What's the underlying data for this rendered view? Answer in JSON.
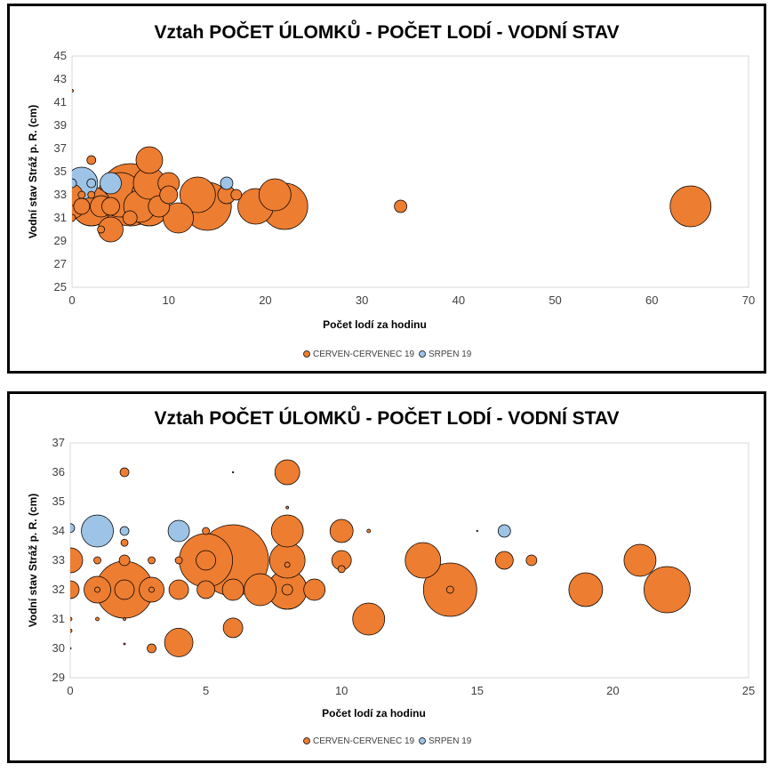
{
  "chart_data": [
    {
      "type": "scatter",
      "title": "Vztah POČET ÚLOMKŮ - POČET LODÍ - VODNÍ STAV",
      "xlabel": "Počet lodí za hodinu",
      "ylabel": "Vodní stav Stráž p. R. (cm)",
      "xlim": [
        0,
        70
      ],
      "ylim": [
        25,
        45
      ],
      "xticks": [
        0,
        10,
        20,
        30,
        40,
        50,
        60,
        70
      ],
      "yticks": [
        25,
        27,
        29,
        31,
        33,
        35,
        37,
        39,
        41,
        43,
        45
      ],
      "legend_position": "bottom",
      "series": [
        {
          "name": "CERVEN-CERVENEC 19",
          "color": "#ED7D31",
          "points": [
            {
              "x": 0,
              "y": 32,
              "size": 14
            },
            {
              "x": 0,
              "y": 33,
              "size": 12
            },
            {
              "x": 0,
              "y": 31,
              "size": 4
            },
            {
              "x": 0,
              "y": 42,
              "size": 1.5
            },
            {
              "x": 1,
              "y": 32,
              "size": 9
            },
            {
              "x": 1,
              "y": 33,
              "size": 4
            },
            {
              "x": 2,
              "y": 32,
              "size": 22
            },
            {
              "x": 2,
              "y": 36,
              "size": 5
            },
            {
              "x": 2,
              "y": 33,
              "size": 4
            },
            {
              "x": 3,
              "y": 32,
              "size": 12
            },
            {
              "x": 3,
              "y": 30,
              "size": 4
            },
            {
              "x": 4,
              "y": 30,
              "size": 14
            },
            {
              "x": 4,
              "y": 32,
              "size": 10
            },
            {
              "x": 5,
              "y": 33,
              "size": 25
            },
            {
              "x": 6,
              "y": 33,
              "size": 35
            },
            {
              "x": 6,
              "y": 31,
              "size": 8
            },
            {
              "x": 7,
              "y": 32,
              "size": 18
            },
            {
              "x": 8,
              "y": 36,
              "size": 15
            },
            {
              "x": 8,
              "y": 34,
              "size": 18
            },
            {
              "x": 8,
              "y": 33,
              "size": 20
            },
            {
              "x": 8,
              "y": 32,
              "size": 22
            },
            {
              "x": 9,
              "y": 32,
              "size": 12
            },
            {
              "x": 10,
              "y": 34,
              "size": 12
            },
            {
              "x": 10,
              "y": 33,
              "size": 10
            },
            {
              "x": 11,
              "y": 31,
              "size": 17
            },
            {
              "x": 13,
              "y": 33,
              "size": 20
            },
            {
              "x": 14,
              "y": 32,
              "size": 27
            },
            {
              "x": 16,
              "y": 33,
              "size": 10
            },
            {
              "x": 17,
              "y": 33,
              "size": 6
            },
            {
              "x": 19,
              "y": 32,
              "size": 20
            },
            {
              "x": 21,
              "y": 33,
              "size": 18
            },
            {
              "x": 22,
              "y": 32,
              "size": 26
            },
            {
              "x": 34,
              "y": 32,
              "size": 7
            },
            {
              "x": 64,
              "y": 32,
              "size": 23
            }
          ]
        },
        {
          "name": "SRPEN 19",
          "color": "#9DC3E6",
          "points": [
            {
              "x": 0,
              "y": 34,
              "size": 5
            },
            {
              "x": 1,
              "y": 34,
              "size": 18
            },
            {
              "x": 2,
              "y": 34,
              "size": 5
            },
            {
              "x": 4,
              "y": 34,
              "size": 12
            },
            {
              "x": 16,
              "y": 34,
              "size": 7
            }
          ]
        }
      ]
    },
    {
      "type": "scatter",
      "title": "Vztah POČET ÚLOMKŮ - POČET LODÍ - VODNÍ STAV",
      "xlabel": "Počet lodí za hodinu",
      "ylabel": "Vodní stav Stráž p. R. (cm)",
      "xlim": [
        0,
        25
      ],
      "ylim": [
        29,
        37
      ],
      "xticks": [
        0,
        5,
        10,
        15,
        20,
        25
      ],
      "yticks": [
        29,
        30,
        31,
        32,
        33,
        34,
        35,
        36,
        37
      ],
      "legend_position": "bottom",
      "series": [
        {
          "name": "CERVEN-CERVENEC 19",
          "color": "#ED7D31",
          "points": [
            {
              "x": 0,
              "y": 33,
              "size": 14
            },
            {
              "x": 0,
              "y": 32,
              "size": 10
            },
            {
              "x": 0,
              "y": 31,
              "size": 2
            },
            {
              "x": 0,
              "y": 30.6,
              "size": 2
            },
            {
              "x": 0,
              "y": 30,
              "size": 1
            },
            {
              "x": 1,
              "y": 33,
              "size": 4
            },
            {
              "x": 1,
              "y": 32,
              "size": 15
            },
            {
              "x": 1,
              "y": 32,
              "size": 3
            },
            {
              "x": 1,
              "y": 31,
              "size": 2
            },
            {
              "x": 2,
              "y": 36,
              "size": 5
            },
            {
              "x": 2,
              "y": 33.6,
              "size": 4
            },
            {
              "x": 2,
              "y": 33,
              "size": 6
            },
            {
              "x": 2,
              "y": 32,
              "size": 32
            },
            {
              "x": 2,
              "y": 32,
              "size": 11
            },
            {
              "x": 2,
              "y": 31,
              "size": 1.5
            },
            {
              "x": 2,
              "y": 30.15,
              "size": 1
            },
            {
              "x": 3,
              "y": 33,
              "size": 4
            },
            {
              "x": 3,
              "y": 32,
              "size": 14
            },
            {
              "x": 3,
              "y": 32,
              "size": 3
            },
            {
              "x": 3,
              "y": 30,
              "size": 5
            },
            {
              "x": 4,
              "y": 33,
              "size": 4
            },
            {
              "x": 4,
              "y": 32,
              "size": 11
            },
            {
              "x": 4,
              "y": 30.2,
              "size": 16
            },
            {
              "x": 5,
              "y": 34,
              "size": 4
            },
            {
              "x": 5,
              "y": 33,
              "size": 30
            },
            {
              "x": 5,
              "y": 32,
              "size": 10
            },
            {
              "x": 5,
              "y": 33,
              "size": 11
            },
            {
              "x": 6,
              "y": 33,
              "size": 40
            },
            {
              "x": 6,
              "y": 32,
              "size": 12
            },
            {
              "x": 6,
              "y": 30.7,
              "size": 11
            },
            {
              "x": 6,
              "y": 36,
              "size": 0.7
            },
            {
              "x": 7,
              "y": 32,
              "size": 18
            },
            {
              "x": 8,
              "y": 36,
              "size": 14
            },
            {
              "x": 8,
              "y": 34.8,
              "size": 1.5
            },
            {
              "x": 8,
              "y": 34,
              "size": 18
            },
            {
              "x": 8,
              "y": 33,
              "size": 20
            },
            {
              "x": 8,
              "y": 32.85,
              "size": 3
            },
            {
              "x": 8,
              "y": 32,
              "size": 22
            },
            {
              "x": 8,
              "y": 32,
              "size": 6
            },
            {
              "x": 9,
              "y": 32,
              "size": 12
            },
            {
              "x": 10,
              "y": 34,
              "size": 13
            },
            {
              "x": 10,
              "y": 33,
              "size": 11
            },
            {
              "x": 10,
              "y": 32.7,
              "size": 4
            },
            {
              "x": 11,
              "y": 34,
              "size": 2
            },
            {
              "x": 11,
              "y": 31,
              "size": 18
            },
            {
              "x": 13,
              "y": 33,
              "size": 20
            },
            {
              "x": 14,
              "y": 32,
              "size": 30
            },
            {
              "x": 14,
              "y": 32,
              "size": 4
            },
            {
              "x": 16,
              "y": 33,
              "size": 10
            },
            {
              "x": 17,
              "y": 33,
              "size": 6
            },
            {
              "x": 19,
              "y": 32,
              "size": 19
            },
            {
              "x": 21,
              "y": 33,
              "size": 18
            },
            {
              "x": 22,
              "y": 32,
              "size": 26
            }
          ]
        },
        {
          "name": "SRPEN 19",
          "color": "#9DC3E6",
          "points": [
            {
              "x": 0,
              "y": 34.1,
              "size": 5
            },
            {
              "x": 1,
              "y": 34,
              "size": 18
            },
            {
              "x": 2,
              "y": 34,
              "size": 5
            },
            {
              "x": 4,
              "y": 34,
              "size": 12
            },
            {
              "x": 15,
              "y": 34,
              "size": 0.7
            },
            {
              "x": 16,
              "y": 34,
              "size": 7
            }
          ]
        }
      ]
    }
  ]
}
